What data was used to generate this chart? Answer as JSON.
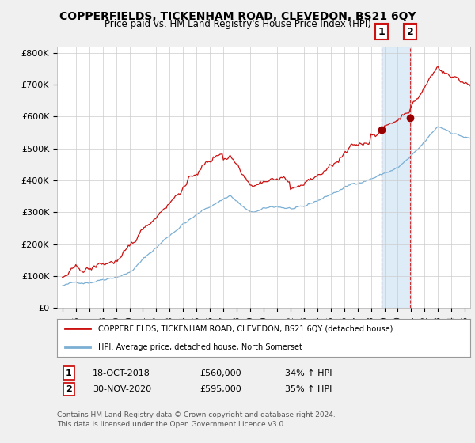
{
  "title_line1": "COPPERFIELDS, TICKENHAM ROAD, CLEVEDON, BS21 6QY",
  "title_line2": "Price paid vs. HM Land Registry's House Price Index (HPI)",
  "ylabel_ticks": [
    "£0",
    "£100K",
    "£200K",
    "£300K",
    "£400K",
    "£500K",
    "£600K",
    "£700K",
    "£800K"
  ],
  "ytick_values": [
    0,
    100000,
    200000,
    300000,
    400000,
    500000,
    600000,
    700000,
    800000
  ],
  "ylim": [
    0,
    820000
  ],
  "xlim_years": [
    1994.6,
    2025.4
  ],
  "hpi_color": "#7bafd4",
  "price_color": "#cc1111",
  "transaction1_x": 2018.79,
  "transaction1_price": 560000,
  "transaction2_x": 2020.92,
  "transaction2_price": 595000,
  "shade_color": "#d0e4f5",
  "legend_price_label": "COPPERFIELDS, TICKENHAM ROAD, CLEVEDON, BS21 6QY (detached house)",
  "legend_hpi_label": "HPI: Average price, detached house, North Somerset",
  "table_row1": [
    "1",
    "18-OCT-2018",
    "£560,000",
    "34% ↑ HPI"
  ],
  "table_row2": [
    "2",
    "30-NOV-2020",
    "£595,000",
    "35% ↑ HPI"
  ],
  "footnote": "Contains HM Land Registry data © Crown copyright and database right 2024.\nThis data is licensed under the Open Government Licence v3.0.",
  "background_color": "#f0f0f0",
  "plot_bg_color": "#ffffff",
  "grid_color": "#cccccc"
}
